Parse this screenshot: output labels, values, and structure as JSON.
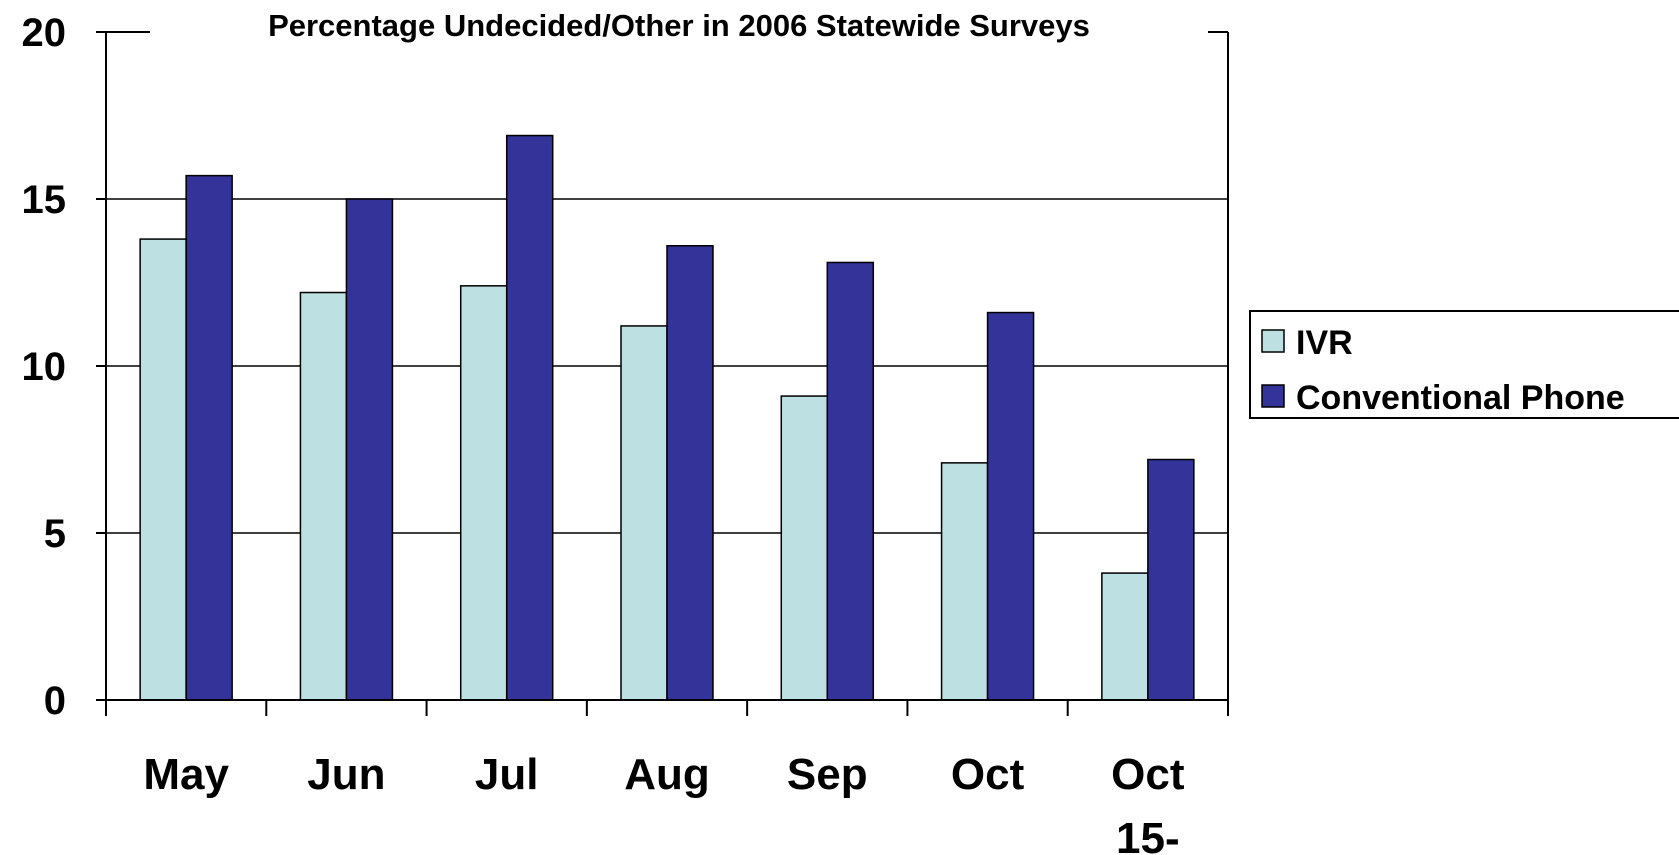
{
  "chart_data": {
    "type": "bar",
    "title": "Percentage Undecided/Other in 2006 Statewide Surveys",
    "xlabel": "",
    "ylabel": "",
    "ylim": [
      0,
      20
    ],
    "y_ticks": [
      0,
      5,
      10,
      15,
      20
    ],
    "y_tick_labels": [
      "0",
      "5",
      "10",
      "15",
      "20"
    ],
    "categories": [
      "May",
      "Jun",
      "Jul",
      "Aug",
      "Sep",
      "Oct",
      "Oct 15-"
    ],
    "category_lines": [
      [
        "May"
      ],
      [
        "Jun"
      ],
      [
        "Jul"
      ],
      [
        "Aug"
      ],
      [
        "Sep"
      ],
      [
        "Oct"
      ],
      [
        "Oct",
        "15-"
      ]
    ],
    "series": [
      {
        "name": "IVR",
        "color": "#bde0e3",
        "values": [
          13.8,
          12.2,
          12.4,
          11.2,
          9.1,
          7.1,
          3.8
        ]
      },
      {
        "name": "Conventional Phone",
        "color": "#333399",
        "values": [
          15.7,
          15.0,
          16.9,
          13.6,
          13.1,
          11.6,
          7.2
        ]
      }
    ],
    "grid": true,
    "legend_position": "right"
  }
}
